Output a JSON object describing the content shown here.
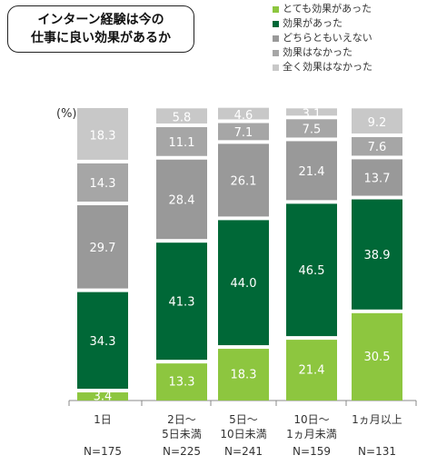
{
  "title": "インターン経験は今の\n仕事に良い効果があるか",
  "unit_label": "(%)",
  "chart_data": {
    "type": "bar",
    "stacked": true,
    "title": "インターン経験は今の\n仕事に良い効果があるか",
    "ylabel": "(%)",
    "ylim": [
      0,
      100
    ],
    "categories": [
      "1日",
      "2日～\n5日未満",
      "5日～\n10日未満",
      "10日～\n1ヵ月未満",
      "1ヵ月以上"
    ],
    "n_labels": [
      "N=175",
      "N=225",
      "N=241",
      "N=159",
      "N=131"
    ],
    "legend_position": "top-right",
    "series": [
      {
        "name": "とても効果があった",
        "color": "#8dc63f",
        "label_color": "#ffffff",
        "values": [
          3.4,
          13.3,
          18.3,
          21.4,
          30.5
        ]
      },
      {
        "name": "効果があった",
        "color": "#006837",
        "label_color": "#ffffff",
        "values": [
          34.3,
          41.3,
          44.0,
          46.5,
          38.9
        ]
      },
      {
        "name": "どちらともいえない",
        "color": "#999999",
        "label_color": "#ffffff",
        "values": [
          29.7,
          28.4,
          26.1,
          21.4,
          13.7
        ]
      },
      {
        "name": "効果はなかった",
        "color": "#a6a6a6",
        "label_color": "#ffffff",
        "values": [
          14.3,
          11.1,
          7.1,
          7.5,
          7.6
        ]
      },
      {
        "name": "全く効果はなかった",
        "color": "#c8c8c8",
        "label_color": "#ffffff",
        "values": [
          18.3,
          5.8,
          4.6,
          3.1,
          9.2
        ]
      }
    ]
  }
}
